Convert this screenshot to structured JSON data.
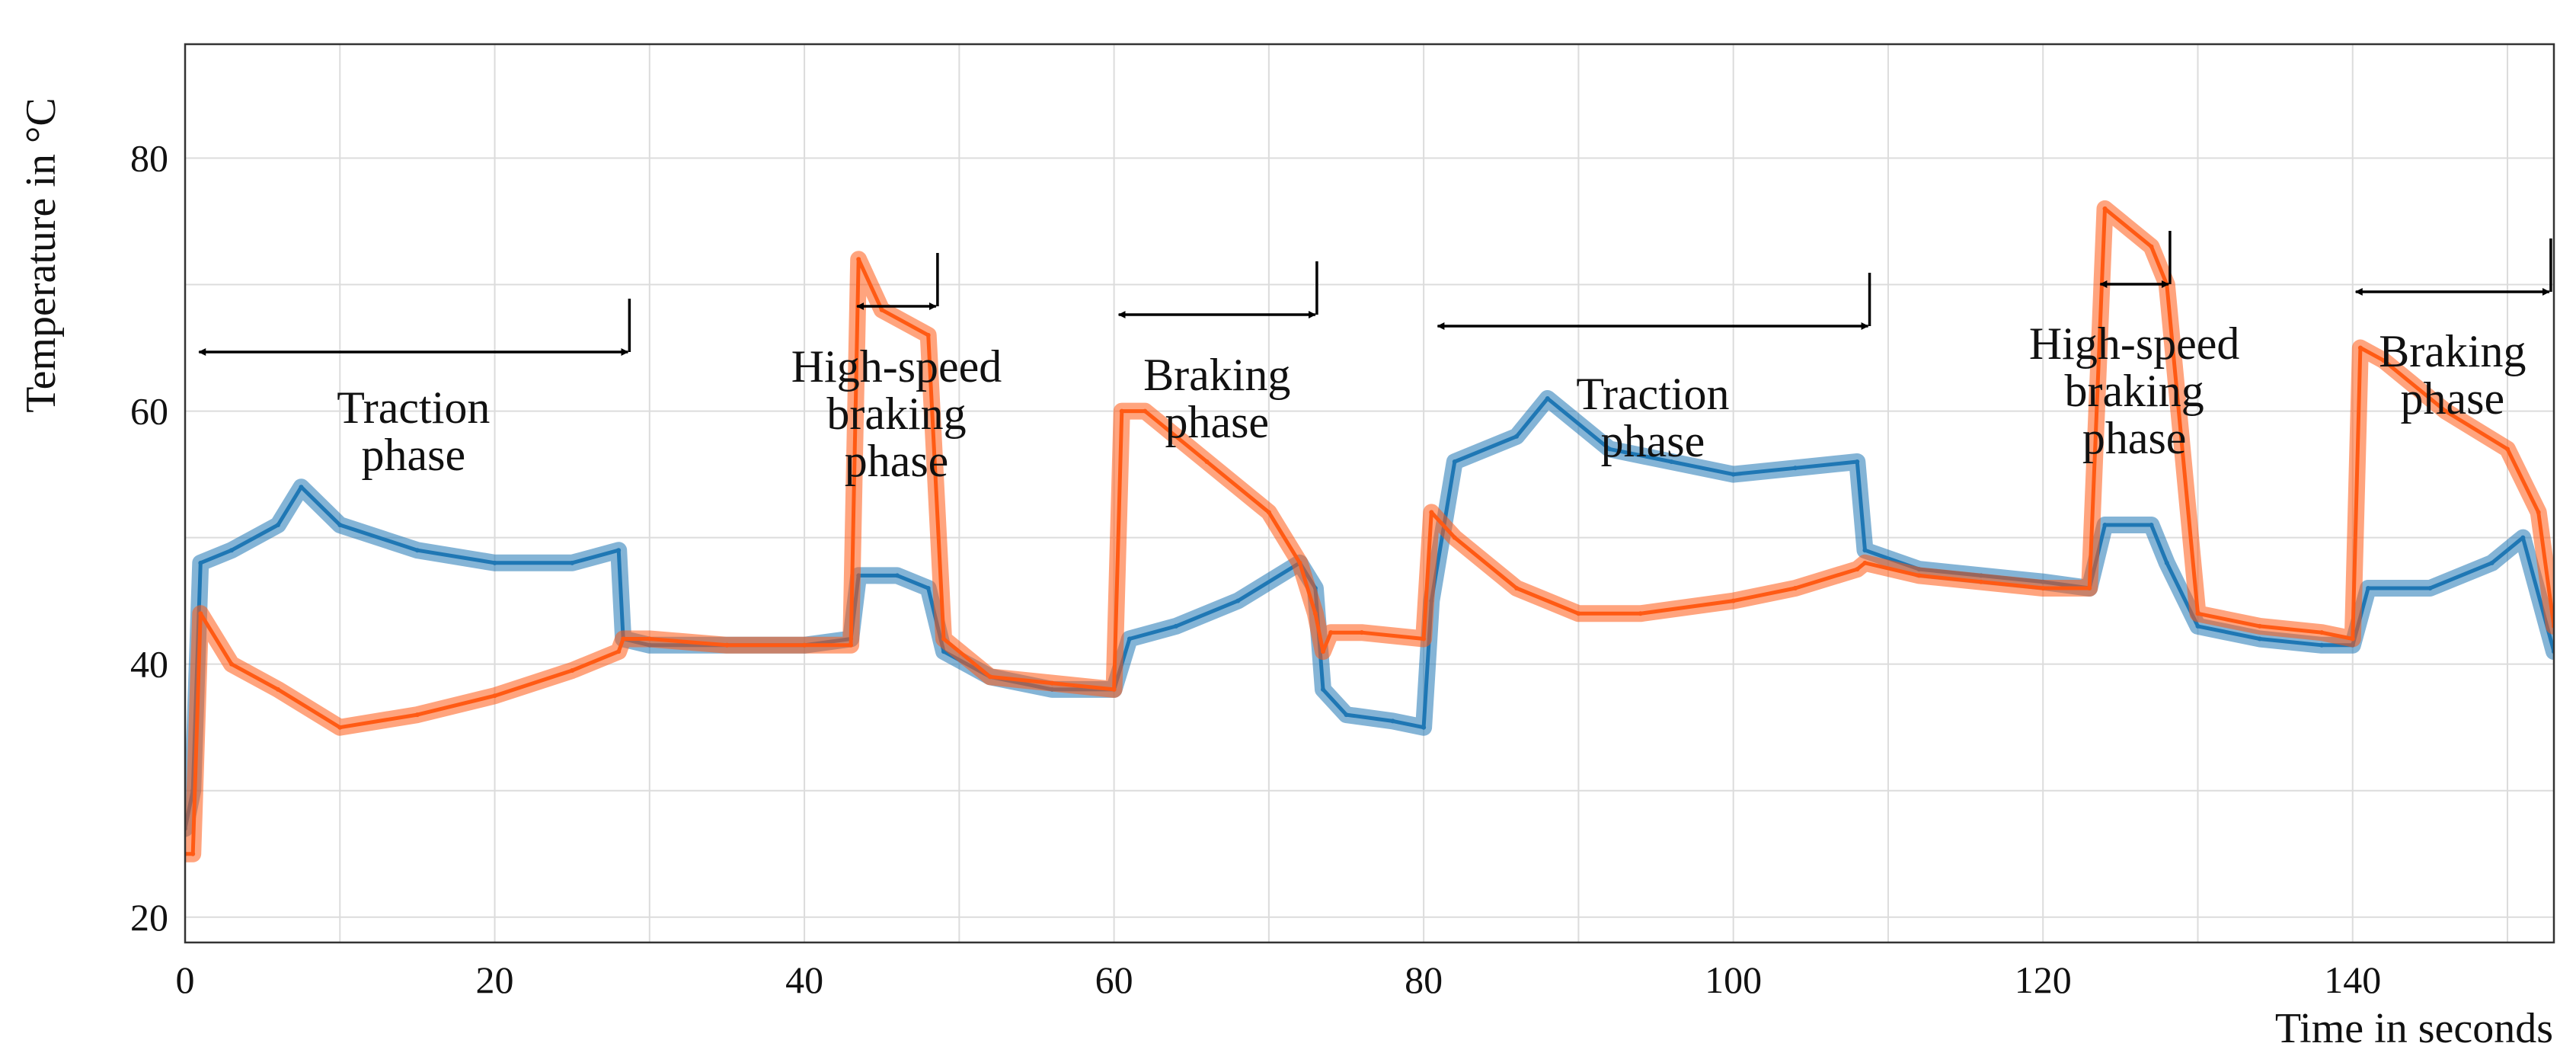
{
  "chart_data": {
    "type": "line",
    "title": "",
    "xlabel": "Time in seconds",
    "ylabel": "Temperature in °C",
    "xlim": [
      0,
      153
    ],
    "ylim": [
      18,
      89
    ],
    "xticks": [
      0,
      20,
      40,
      60,
      80,
      100,
      120,
      140
    ],
    "yticks": [
      20,
      40,
      60,
      80
    ],
    "x_tick_labels": [
      "0",
      "20",
      "40",
      "60",
      "80",
      "100",
      "120",
      "140"
    ],
    "y_tick_labels": [
      "20",
      "40",
      "60",
      "80"
    ],
    "grid": true,
    "colors": {
      "blue_series": "#1f77b4",
      "orange_series": "#ff5a14",
      "annotation": "#000000",
      "grid": "#dcdcdc"
    },
    "series": [
      {
        "name": "blue",
        "color": "#1f77b4",
        "x": [
          0,
          0.5,
          1,
          3,
          6,
          7.5,
          10,
          15,
          20,
          25,
          28,
          28.3,
          30,
          35,
          40,
          43,
          43.5,
          46,
          48,
          49,
          52,
          56,
          60,
          61,
          64,
          68,
          72,
          73,
          73.5,
          75,
          78,
          80,
          80.5,
          82,
          86,
          88,
          92,
          96,
          100,
          104,
          108,
          108.5,
          112,
          116,
          120,
          123,
          124,
          127,
          128,
          130,
          134,
          138,
          140,
          141,
          145,
          149,
          151,
          153
        ],
        "values": [
          27,
          30,
          48,
          49,
          51,
          54,
          51,
          49,
          48,
          48,
          49,
          42,
          41.5,
          41.5,
          41.5,
          42,
          47,
          47,
          46,
          41,
          39,
          38,
          38,
          42,
          43,
          45,
          48,
          46,
          38,
          36,
          35.5,
          35,
          45,
          56,
          58,
          61,
          57,
          56,
          55,
          55.5,
          56,
          49,
          47.5,
          47,
          46.5,
          46,
          51,
          51,
          48,
          43,
          42,
          41.5,
          41.5,
          46,
          46,
          48,
          50,
          41
        ]
      },
      {
        "name": "orange",
        "color": "#ff5a14",
        "x": [
          0,
          0.5,
          1,
          3,
          6,
          10,
          15,
          20,
          25,
          28,
          28.3,
          30,
          35,
          40,
          43,
          43.5,
          45,
          48,
          49,
          52,
          56,
          60,
          60.5,
          62,
          66,
          70,
          72,
          73,
          73.5,
          74,
          76,
          80,
          80.5,
          82,
          86,
          90,
          94,
          100,
          104,
          108,
          108.5,
          112,
          116,
          120,
          123,
          124,
          127,
          128,
          130,
          134,
          138,
          140,
          140.5,
          142,
          146,
          150,
          152,
          153
        ],
        "values": [
          25,
          25,
          44,
          40,
          38,
          35,
          36,
          37.5,
          39.5,
          41,
          42,
          42,
          41.5,
          41.5,
          41.5,
          72,
          68,
          66,
          42,
          39,
          38.5,
          38,
          60,
          60,
          56,
          52,
          48,
          44,
          41,
          42.5,
          42.5,
          42,
          52,
          50,
          46,
          44,
          44,
          45,
          46,
          47.5,
          48,
          47,
          46.5,
          46,
          46,
          76,
          73,
          70,
          44,
          43,
          42.5,
          42,
          65,
          64,
          60,
          57,
          52,
          43
        ]
      }
    ],
    "annotations": [
      {
        "label_lines": [
          "Traction",
          "phase"
        ],
        "x_start": 0.8,
        "x_end": 28.7
      },
      {
        "label_lines": [
          "High-speed",
          "braking",
          "phase"
        ],
        "x_start": 43.3,
        "x_end": 48.6
      },
      {
        "label_lines": [
          "Braking",
          "phase"
        ],
        "x_start": 60.2,
        "x_end": 73.1
      },
      {
        "label_lines": [
          "Traction",
          "phase"
        ],
        "x_start": 80.8,
        "x_end": 108.8
      },
      {
        "label_lines": [
          "High-speed",
          "braking",
          "phase"
        ],
        "x_start": 123.6,
        "x_end": 128.2
      },
      {
        "label_lines": [
          "Braking",
          "phase"
        ],
        "x_start": 140.1,
        "x_end": 152.8
      }
    ]
  }
}
